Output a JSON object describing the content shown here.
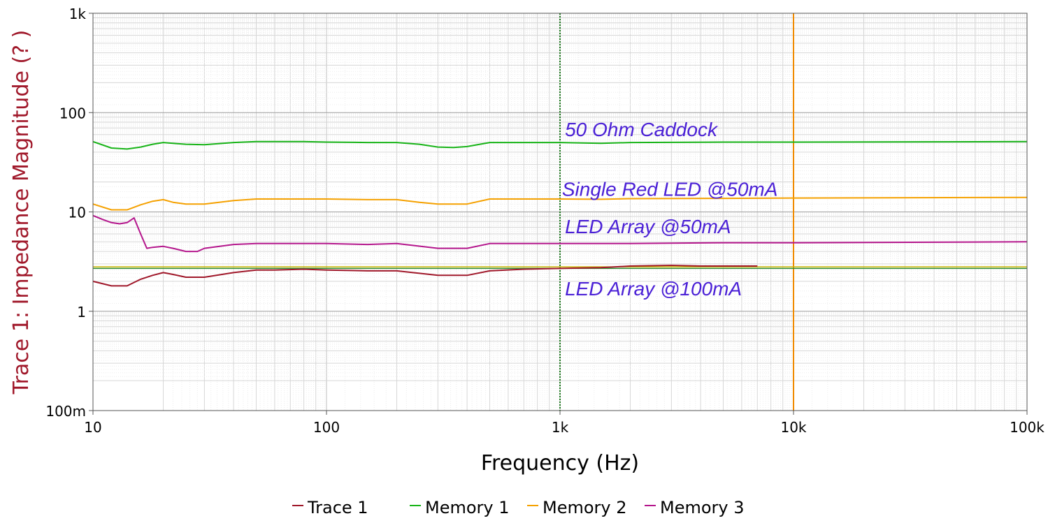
{
  "chart_data": {
    "type": "line",
    "xlabel": "Frequency (Hz)",
    "ylabel": "Trace 1: Impedance Magnitude (? )",
    "x_scale": "log",
    "y_scale": "log",
    "xlim": [
      10,
      100000
    ],
    "ylim": [
      0.1,
      1000
    ],
    "grid": true,
    "legend_position": "bottom",
    "x_ticks": [
      {
        "value": 10,
        "label": "10"
      },
      {
        "value": 100,
        "label": "100"
      },
      {
        "value": 1000,
        "label": "1k"
      },
      {
        "value": 10000,
        "label": "10k"
      },
      {
        "value": 100000,
        "label": "100k"
      }
    ],
    "y_ticks": [
      {
        "value": 0.1,
        "label": "100m"
      },
      {
        "value": 1,
        "label": "1"
      },
      {
        "value": 10,
        "label": "10"
      },
      {
        "value": 100,
        "label": "100"
      },
      {
        "value": 1000,
        "label": "1k"
      }
    ],
    "markers": [
      {
        "x": 1000,
        "color": "#1a7a1a",
        "style": "dotted"
      },
      {
        "x": 10000,
        "color": "#f08a00",
        "style": "solid"
      }
    ],
    "reference_lines": [
      {
        "y": 2.8,
        "color": "#c8b400"
      },
      {
        "y": 2.7,
        "color": "#2e8b2e"
      }
    ],
    "series": [
      {
        "name": "Trace 1",
        "color": "#a0182a",
        "x": [
          10,
          12,
          14,
          16,
          18,
          20,
          22,
          25,
          30,
          40,
          50,
          60,
          80,
          100,
          150,
          200,
          300,
          400,
          500,
          700,
          1000,
          1500,
          2000,
          3000,
          4000,
          5000,
          7000
        ],
        "y": [
          2.0,
          1.8,
          1.8,
          2.1,
          2.3,
          2.45,
          2.35,
          2.2,
          2.2,
          2.45,
          2.6,
          2.6,
          2.65,
          2.6,
          2.55,
          2.55,
          2.3,
          2.3,
          2.55,
          2.65,
          2.7,
          2.75,
          2.85,
          2.9,
          2.85,
          2.85,
          2.85
        ]
      },
      {
        "name": "Memory 1",
        "color": "#18b418",
        "x": [
          10,
          12,
          14,
          16,
          18,
          20,
          22,
          25,
          30,
          40,
          50,
          60,
          80,
          100,
          150,
          200,
          250,
          300,
          350,
          400,
          500,
          700,
          1000,
          1500,
          2000,
          5000,
          10000,
          100000
        ],
        "y": [
          51,
          44,
          43,
          45,
          48,
          50,
          49,
          48,
          47.5,
          50,
          51,
          51,
          51,
          50.5,
          50,
          50,
          48,
          45,
          44.5,
          45.5,
          50,
          50,
          50,
          49,
          50,
          50.5,
          50.5,
          51
        ]
      },
      {
        "name": "Memory 2",
        "color": "#f5a100",
        "x": [
          10,
          12,
          14,
          16,
          18,
          20,
          22,
          25,
          30,
          40,
          50,
          60,
          80,
          100,
          150,
          200,
          250,
          300,
          400,
          500,
          700,
          1000,
          1500,
          2000,
          5000,
          10000,
          100000
        ],
        "y": [
          12,
          10.5,
          10.5,
          11.8,
          12.8,
          13.3,
          12.5,
          12,
          12,
          13,
          13.5,
          13.5,
          13.5,
          13.5,
          13.3,
          13.3,
          12.5,
          12,
          12,
          13.5,
          13.5,
          13.5,
          13.4,
          13.6,
          13.7,
          13.8,
          14
        ]
      },
      {
        "name": "Memory 3",
        "color": "#b4168c",
        "x": [
          10,
          11,
          12,
          13,
          14,
          15,
          16,
          17,
          18,
          20,
          22,
          25,
          28,
          30,
          40,
          50,
          100,
          150,
          200,
          300,
          400,
          500,
          700,
          1000,
          2000,
          5000,
          10000,
          100000
        ],
        "y": [
          9.2,
          8.4,
          7.8,
          7.6,
          7.8,
          8.7,
          6.0,
          4.3,
          4.4,
          4.5,
          4.3,
          4.0,
          4.0,
          4.3,
          4.7,
          4.8,
          4.8,
          4.7,
          4.8,
          4.3,
          4.3,
          4.8,
          4.8,
          4.8,
          4.8,
          4.9,
          4.9,
          5.0
        ]
      }
    ],
    "annotations": [
      {
        "text": "50 Ohm Caddock",
        "x": 1050,
        "y": 68
      },
      {
        "text": "Single Red LED @50mA",
        "x": 1020,
        "y": 17
      },
      {
        "text": "LED Array @50mA",
        "x": 1050,
        "y": 7.2
      },
      {
        "text": "LED Array @100mA",
        "x": 1050,
        "y": 1.7
      }
    ]
  }
}
